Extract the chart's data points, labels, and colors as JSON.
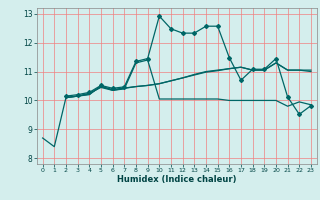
{
  "title": "",
  "xlabel": "Humidex (Indice chaleur)",
  "background_color": "#d4eeed",
  "grid_color": "#f08080",
  "line_color": "#006666",
  "xlim": [
    -0.5,
    23.5
  ],
  "ylim": [
    7.8,
    13.2
  ],
  "xticks": [
    0,
    1,
    2,
    3,
    4,
    5,
    6,
    7,
    8,
    9,
    10,
    11,
    12,
    13,
    14,
    15,
    16,
    17,
    18,
    19,
    20,
    21,
    22,
    23
  ],
  "yticks": [
    8,
    9,
    10,
    11,
    12,
    13
  ],
  "series": [
    {
      "x": [
        0,
        1,
        2,
        3,
        4,
        5,
        6,
        7,
        8,
        9,
        10,
        11,
        12,
        13,
        14,
        15,
        16,
        17,
        18,
        19,
        20,
        21,
        22,
        23
      ],
      "y": [
        8.7,
        8.4,
        10.1,
        10.15,
        10.2,
        10.5,
        10.35,
        10.4,
        11.3,
        11.4,
        10.05,
        10.05,
        10.05,
        10.05,
        10.05,
        10.05,
        10.0,
        10.0,
        10.0,
        10.0,
        10.0,
        9.8,
        9.95,
        9.85
      ],
      "marker": false,
      "linewidth": 0.9
    },
    {
      "x": [
        2,
        3,
        4,
        5,
        6,
        7,
        8,
        9,
        10,
        11,
        12,
        13,
        14,
        15,
        16,
        17,
        18,
        19,
        20,
        21,
        22,
        23
      ],
      "y": [
        10.1,
        10.15,
        10.25,
        10.45,
        10.35,
        10.42,
        10.48,
        10.52,
        10.58,
        10.68,
        10.78,
        10.9,
        11.0,
        11.05,
        11.1,
        11.15,
        11.05,
        11.05,
        11.3,
        11.05,
        11.05,
        11.05
      ],
      "marker": false,
      "linewidth": 0.9
    },
    {
      "x": [
        2,
        3,
        4,
        5,
        6,
        7,
        8,
        9,
        10,
        11,
        12,
        13,
        14,
        15,
        16,
        17,
        18,
        19,
        20,
        21,
        22,
        23
      ],
      "y": [
        10.1,
        10.15,
        10.22,
        10.48,
        10.38,
        10.43,
        10.48,
        10.52,
        10.58,
        10.68,
        10.78,
        10.88,
        10.98,
        11.03,
        11.1,
        11.15,
        11.05,
        11.05,
        11.3,
        11.05,
        11.05,
        11.0
      ],
      "marker": false,
      "linewidth": 0.9
    },
    {
      "x": [
        2,
        3,
        4,
        5,
        6,
        7,
        8,
        9,
        10,
        11,
        12,
        13,
        14,
        15,
        16,
        17,
        18,
        19,
        20,
        21,
        22,
        23
      ],
      "y": [
        10.15,
        10.2,
        10.28,
        10.52,
        10.42,
        10.47,
        11.35,
        11.45,
        12.92,
        12.48,
        12.33,
        12.33,
        12.57,
        12.57,
        11.48,
        10.7,
        11.08,
        11.08,
        11.45,
        10.12,
        9.52,
        9.82
      ],
      "marker": true,
      "linewidth": 0.9
    }
  ]
}
